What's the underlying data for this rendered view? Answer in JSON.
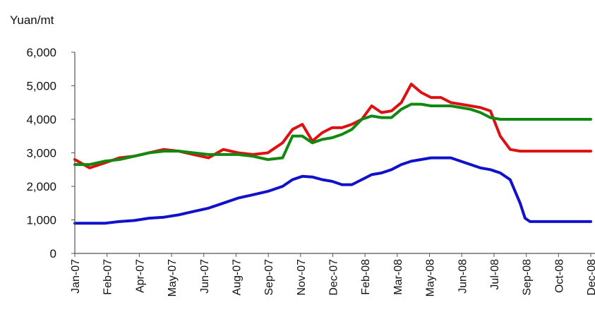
{
  "chart_data": {
    "type": "line",
    "title": "",
    "ylabel": "Yuan/mt",
    "xlabel": "",
    "ylim": [
      0,
      6000
    ],
    "y_ticks": [
      "0",
      "1,000",
      "2,000",
      "3,000",
      "4,000",
      "5,000",
      "6,000"
    ],
    "grid": false,
    "legend": "none",
    "x_tick_labels": [
      "Jan-07",
      "Feb-07",
      "Apr-07",
      "May-07",
      "Jun-07",
      "Aug-07",
      "Sep-07",
      "Nov-07",
      "Dec-07",
      "Feb-08",
      "Mar-08",
      "May-08",
      "Jun-08",
      "Jul-08",
      "Sep-08",
      "Oct-08",
      "Dec-08"
    ],
    "x": [
      "2007-01-01",
      "2007-01-22",
      "2007-02-12",
      "2007-03-05",
      "2007-03-26",
      "2007-04-16",
      "2007-05-07",
      "2007-05-28",
      "2007-06-18",
      "2007-07-09",
      "2007-07-30",
      "2007-08-20",
      "2007-09-10",
      "2007-10-01",
      "2007-10-22",
      "2007-11-05",
      "2007-11-19",
      "2007-12-03",
      "2007-12-17",
      "2007-12-31",
      "2008-01-14",
      "2008-01-28",
      "2008-02-11",
      "2008-02-25",
      "2008-03-10",
      "2008-03-24",
      "2008-04-07",
      "2008-04-21",
      "2008-05-05",
      "2008-05-19",
      "2008-06-02",
      "2008-06-16",
      "2008-06-30",
      "2008-07-14",
      "2008-07-28",
      "2008-08-11",
      "2008-08-25",
      "2008-09-08",
      "2008-09-22",
      "2008-09-29",
      "2008-10-06",
      "2008-10-13",
      "2008-10-20",
      "2008-11-03",
      "2008-11-24",
      "2008-12-15",
      "2008-12-31"
    ],
    "series": [
      {
        "color": "#dd1111",
        "values": [
          2800,
          2550,
          2700,
          2850,
          2900,
          3000,
          3100,
          3050,
          2950,
          2850,
          3100,
          3000,
          2950,
          3000,
          3300,
          3700,
          3850,
          3350,
          3600,
          3750,
          3750,
          3850,
          4000,
          4400,
          4200,
          4250,
          4500,
          5050,
          4800,
          4650,
          4650,
          4500,
          4450,
          4400,
          4350,
          4250,
          3500,
          3100,
          3050,
          3050,
          3050,
          3050,
          3050,
          3050,
          3050,
          3050,
          3050
        ]
      },
      {
        "color": "#118811",
        "values": [
          2650,
          2650,
          2750,
          2800,
          2900,
          3000,
          3050,
          3050,
          3000,
          2950,
          2950,
          2950,
          2900,
          2800,
          2850,
          3500,
          3500,
          3300,
          3400,
          3450,
          3550,
          3700,
          4000,
          4100,
          4050,
          4050,
          4300,
          4450,
          4450,
          4400,
          4400,
          4400,
          4350,
          4300,
          4200,
          4050,
          4000,
          4000,
          4000,
          4000,
          4000,
          4000,
          4000,
          4000,
          4000,
          4000,
          4000
        ]
      },
      {
        "color": "#1111cc",
        "values": [
          900,
          900,
          900,
          950,
          980,
          1050,
          1080,
          1150,
          1250,
          1350,
          1500,
          1650,
          1750,
          1850,
          2000,
          2200,
          2300,
          2280,
          2200,
          2150,
          2050,
          2050,
          2200,
          2350,
          2400,
          2500,
          2650,
          2750,
          2800,
          2850,
          2850,
          2850,
          2750,
          2650,
          2550,
          2500,
          2400,
          2200,
          1500,
          1050,
          950,
          950,
          950,
          950,
          950,
          950,
          950
        ]
      }
    ]
  }
}
